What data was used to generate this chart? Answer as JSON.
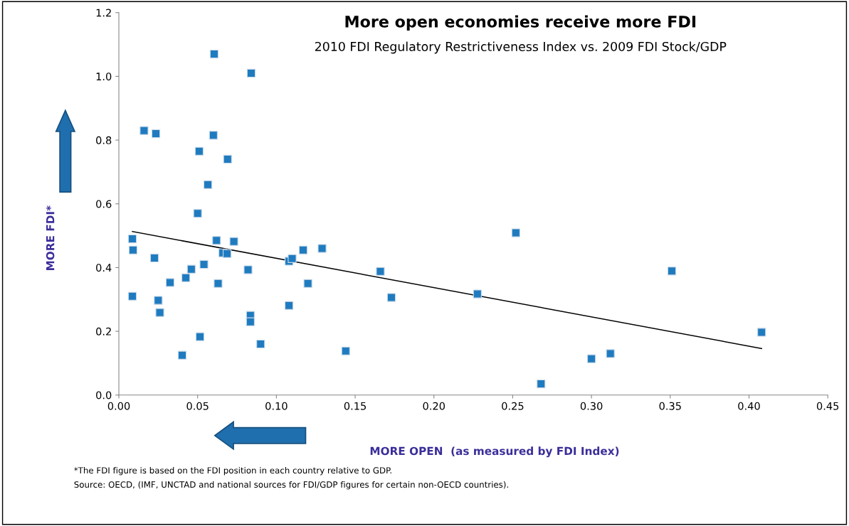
{
  "chart_data": {
    "type": "scatter",
    "title": "More open economies receive more FDI",
    "subtitle": "2010 FDI Regulatory Restrictiveness Index vs. 2009 FDI Stock/GDP",
    "xlabel": "MORE OPEN  (as measured by FDI Index)",
    "ylabel": "MORE FDI*",
    "annotations": [
      "*The FDI figure is based on the FDI position in each country relative to GDP.",
      "Source: OECD, (IMF, UNCTAD and national sources for FDI/GDP figures for certain non-OECD countries)."
    ],
    "xlim": [
      0,
      0.45
    ],
    "ylim": [
      0,
      1.2
    ],
    "xticks": [
      {
        "value": 0,
        "label": "0.00"
      },
      {
        "value": 0.05,
        "label": "0.05"
      },
      {
        "value": 0.1,
        "label": "0.10"
      },
      {
        "value": 0.15,
        "label": "0.15"
      },
      {
        "value": 0.2,
        "label": "0.20"
      },
      {
        "value": 0.25,
        "label": "0.25"
      },
      {
        "value": 0.3,
        "label": "0.30"
      },
      {
        "value": 0.35,
        "label": "0.35"
      },
      {
        "value": 0.4,
        "label": "0.40"
      },
      {
        "value": 0.45,
        "label": "0.45"
      }
    ],
    "yticks": [
      {
        "value": 0,
        "label": "0.0"
      },
      {
        "value": 0.2,
        "label": "0.2"
      },
      {
        "value": 0.4,
        "label": "0.4"
      },
      {
        "value": 0.6,
        "label": "0.6"
      },
      {
        "value": 0.8,
        "label": "0.8"
      },
      {
        "value": 1.0,
        "label": "1.0"
      },
      {
        "value": 1.2,
        "label": "1.2"
      }
    ],
    "grid": false,
    "legend": false,
    "marker": "square",
    "series": [
      {
        "color": "#1f7bbf",
        "x": [
          0.0605,
          0.084,
          0.016,
          0.0235,
          0.06,
          0.051,
          0.069,
          0.0565,
          0.05,
          0.0086,
          0.009,
          0.0226,
          0.0086,
          0.025,
          0.026,
          0.0325,
          0.0425,
          0.046,
          0.054,
          0.0402,
          0.0515,
          0.062,
          0.063,
          0.066,
          0.0687,
          0.073,
          0.082,
          0.0835,
          0.0835,
          0.09,
          0.108,
          0.11,
          0.108,
          0.117,
          0.12,
          0.129,
          0.144,
          0.166,
          0.173,
          0.2276,
          0.252,
          0.268,
          0.3,
          0.312,
          0.351,
          0.408
        ],
        "values": [
          1.07,
          1.01,
          0.83,
          0.82,
          0.815,
          0.765,
          0.74,
          0.66,
          0.57,
          0.49,
          0.455,
          0.43,
          0.31,
          0.297,
          0.259,
          0.353,
          0.368,
          0.395,
          0.41,
          0.125,
          0.183,
          0.485,
          0.35,
          0.446,
          0.444,
          0.482,
          0.393,
          0.25,
          0.23,
          0.16,
          0.42,
          0.428,
          0.281,
          0.455,
          0.35,
          0.46,
          0.138,
          0.388,
          0.306,
          0.317,
          0.509,
          0.035,
          0.114,
          0.13,
          0.389,
          0.197
        ]
      },
      {
        "type": "line",
        "color": "#000000",
        "marker": "none",
        "x": [
          0.0086,
          0.408
        ],
        "values": [
          0.513,
          0.146
        ]
      }
    ]
  }
}
